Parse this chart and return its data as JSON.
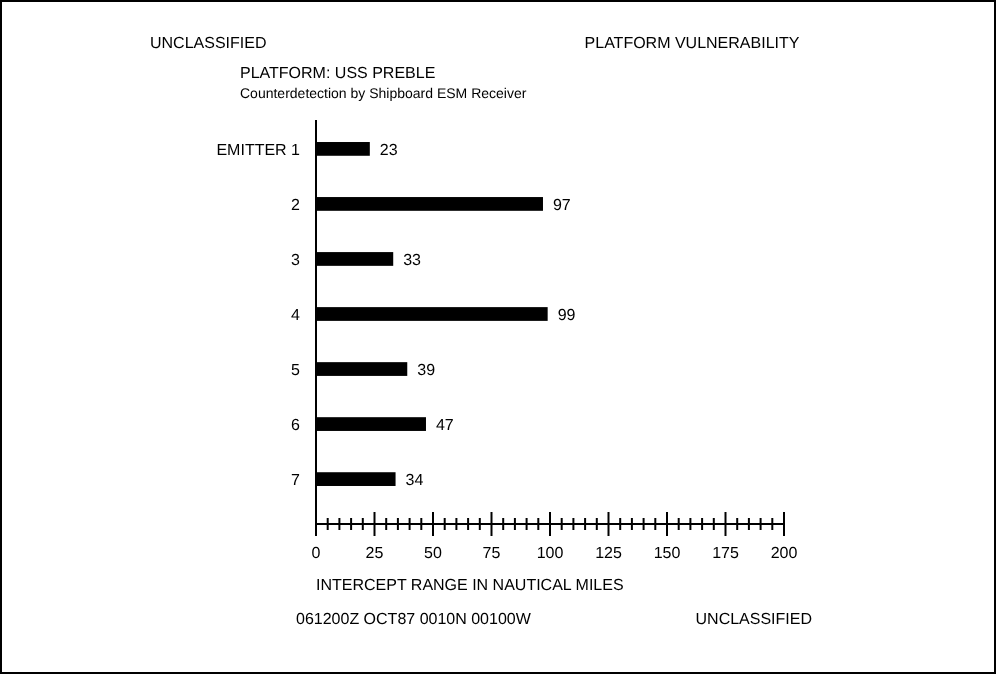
{
  "chart_data": {
    "type": "bar",
    "orientation": "horizontal",
    "title": "PLATFORM VULNERABILITY",
    "subtitle": "PLATFORM:  USS PREBLE",
    "xlabel": "INTERCEPT RANGE IN NAUTICAL MILES",
    "categories": [
      "EMITTER 1",
      "2",
      "3",
      "4",
      "5",
      "6",
      "7"
    ],
    "values": [
      23,
      97,
      33,
      99,
      39,
      47,
      34
    ],
    "color": "#000000",
    "data_labels": true,
    "xlim": [
      0,
      200
    ],
    "xticks": [
      0,
      {
        "value": 5,
        "label": null
      },
      {
        "value": 10,
        "label": null
      },
      {
        "value": 15,
        "label": null
      },
      {
        "value": 20,
        "label": null
      },
      25,
      {
        "value": 30,
        "label": null
      },
      {
        "value": 35,
        "label": null
      },
      {
        "value": 40,
        "label": null
      },
      {
        "value": 45,
        "label": null
      },
      50,
      {
        "value": 55,
        "label": null
      },
      {
        "value": 60,
        "label": null
      },
      {
        "value": 65,
        "label": null
      },
      {
        "value": 70,
        "label": null
      },
      75,
      {
        "value": 80,
        "label": null
      },
      {
        "value": 85,
        "label": null
      },
      {
        "value": 90,
        "label": null
      },
      {
        "value": 95,
        "label": null
      },
      100,
      {
        "value": 105,
        "label": null
      },
      {
        "value": 110,
        "label": null
      },
      {
        "value": 115,
        "label": null
      },
      {
        "value": 120,
        "label": null
      },
      125,
      {
        "value": 130,
        "label": null
      },
      {
        "value": 135,
        "label": null
      },
      {
        "value": 140,
        "label": null
      },
      {
        "value": 145,
        "label": null
      },
      150,
      {
        "value": 155,
        "label": null
      },
      {
        "value": 160,
        "label": null
      },
      {
        "value": 165,
        "label": null
      },
      {
        "value": 170,
        "label": null
      },
      175,
      {
        "value": 180,
        "label": null
      },
      {
        "value": 185,
        "label": null
      },
      {
        "value": 190,
        "label": null
      },
      {
        "value": 195,
        "label": null
      },
      200
    ],
    "annotations": [
      "UNCLASSIFIED",
      "Counterdetection by Shipboard ESM Receiver",
      "061200Z OCT87 0010N 00100W",
      "UNCLASSIFIED"
    ],
    "grid": false
  }
}
